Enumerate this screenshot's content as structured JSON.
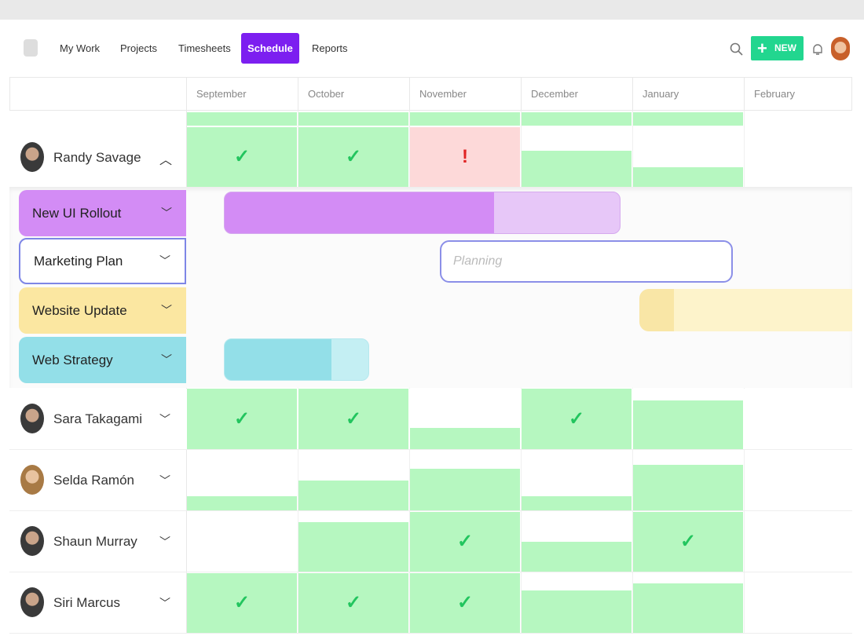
{
  "nav": {
    "items": [
      "My Work",
      "Projects",
      "Timesheets",
      "Schedule",
      "Reports"
    ],
    "new_button": "NEW"
  },
  "months": [
    "September",
    "October",
    "November",
    "December",
    "January",
    "February"
  ],
  "people": [
    {
      "name": "Randy Savage"
    },
    {
      "name": "Sara Takagami"
    },
    {
      "name": "Selda Ramón"
    },
    {
      "name": "Shaun Murray"
    },
    {
      "name": "Siri Marcus"
    }
  ],
  "projects": [
    {
      "name": "New UI Rollout"
    },
    {
      "name": "Marketing Plan",
      "status": "Planning"
    },
    {
      "name": "Website Update"
    },
    {
      "name": "Web Strategy"
    }
  ]
}
